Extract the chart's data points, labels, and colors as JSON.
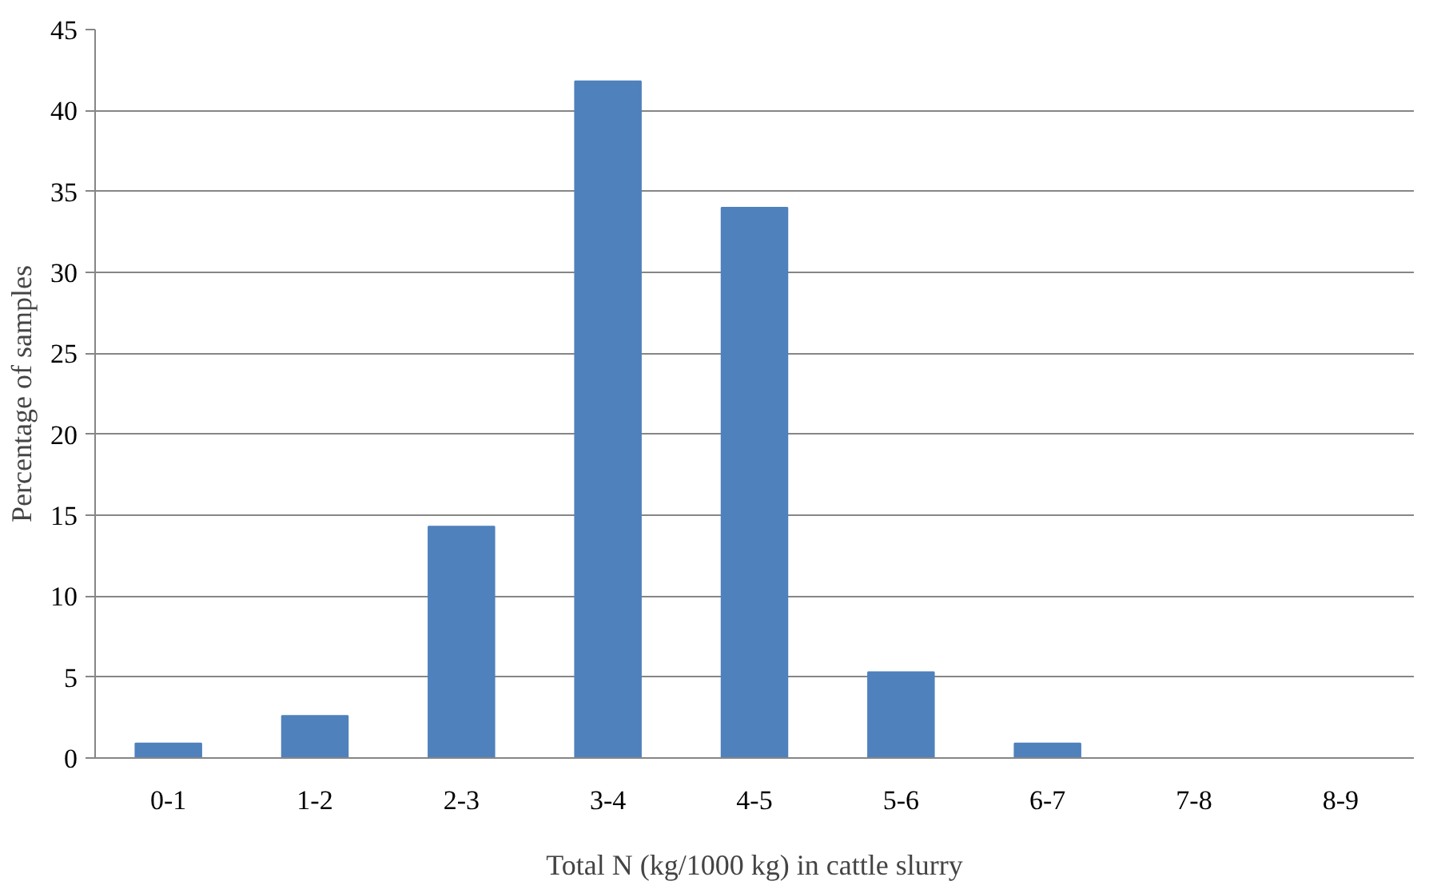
{
  "chart_data": {
    "type": "bar",
    "xlabel": "Total N (kg/1000 kg) in cattle slurry",
    "ylabel": "Percentage of samples",
    "categories": [
      "0-1",
      "1-2",
      "2-3",
      "3-4",
      "4-5",
      "5-6",
      "6-7",
      "7-8",
      "8-9"
    ],
    "values": [
      0.9,
      2.6,
      14.3,
      41.8,
      34.0,
      5.3,
      0.9,
      0,
      0
    ],
    "color": "#4f81bd",
    "ylim": [
      0,
      45
    ],
    "yticks": [
      0,
      5,
      10,
      15,
      20,
      25,
      30,
      35,
      40,
      45
    ],
    "grid": "y"
  }
}
